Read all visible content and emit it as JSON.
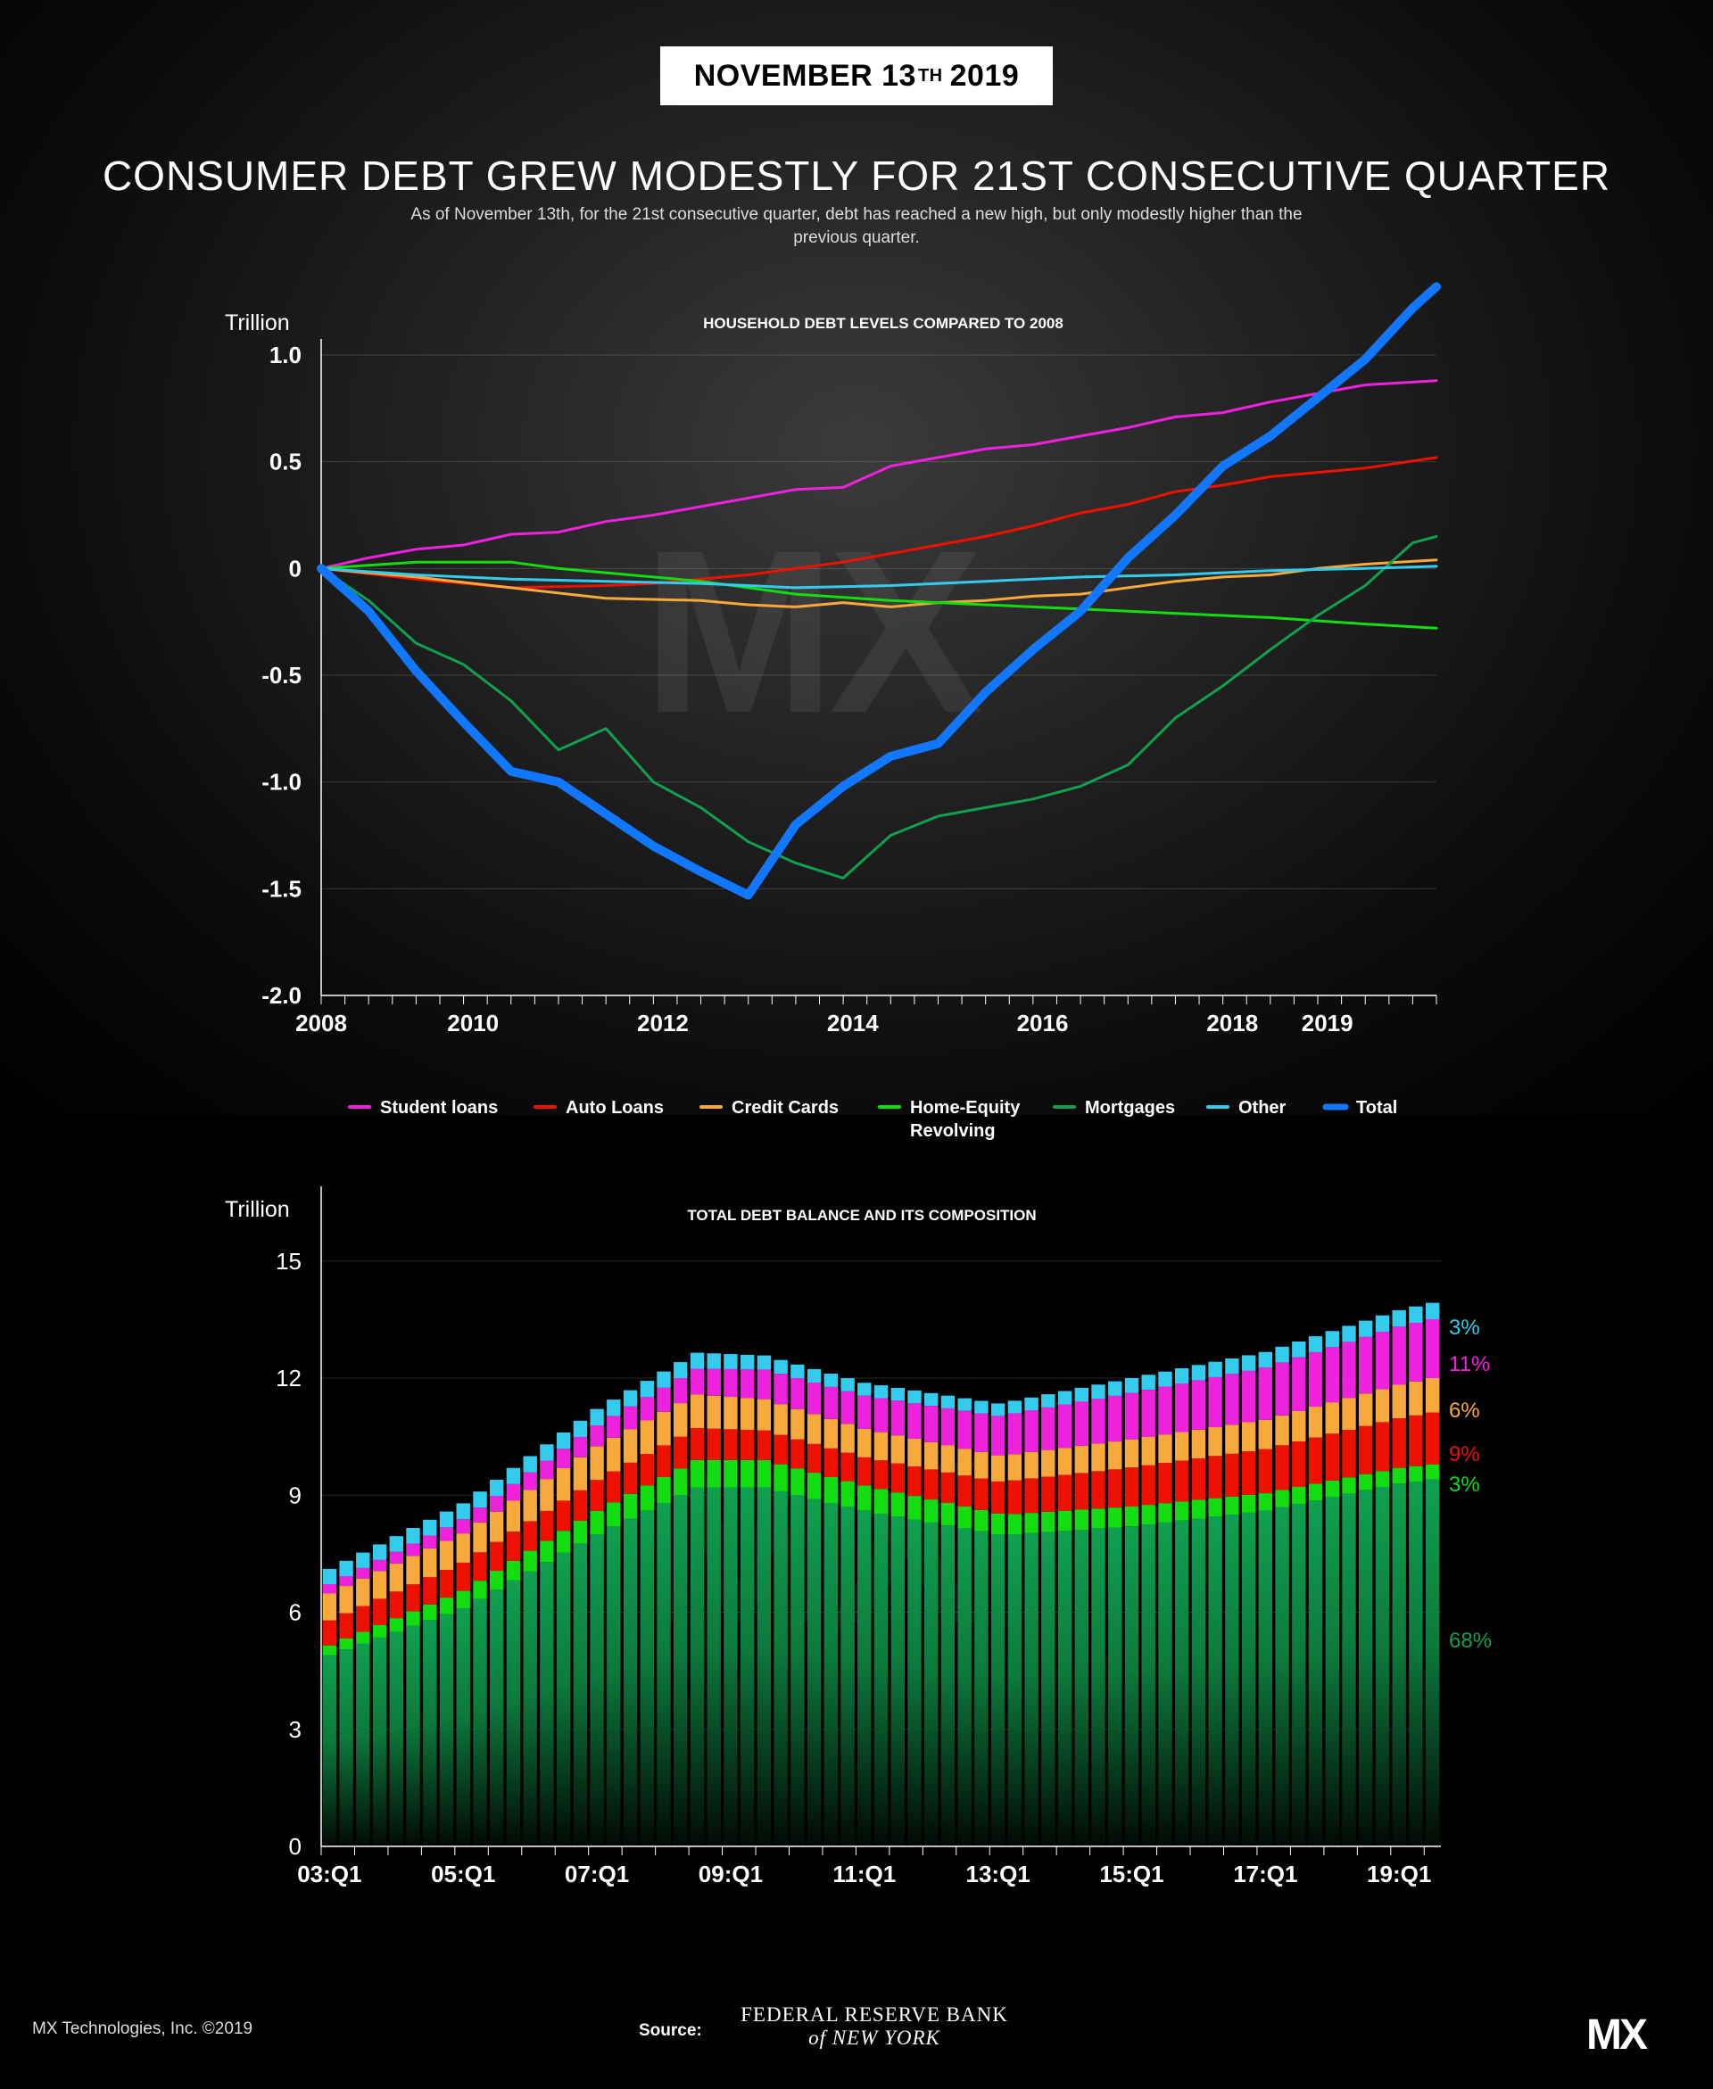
{
  "header": {
    "date_main": "NOVEMBER 13",
    "date_sup": "TH",
    "date_year": "2019",
    "title": "CONSUMER DEBT GREW MODESTLY FOR 21ST CONSECUTIVE QUARTER",
    "subtitle": "As of November 13th, for the 21st consecutive quarter, debt has reached a new high, but only modestly higher than the previous quarter."
  },
  "watermark": "MX",
  "footer": {
    "copyright": "MX Technologies, Inc. ©2019",
    "source_label": "Source:",
    "source_line1": "FEDERAL RESERVE BANK",
    "source_line2": "of NEW YORK",
    "logo": "MX"
  },
  "colors": {
    "student": "#ee22dd",
    "auto": "#ee1100",
    "credit": "#f7a93b",
    "heloc": "#11dd11",
    "mortgage": "#10a050",
    "other": "#33ccee",
    "total": "#1177ff"
  },
  "chart_data": [
    {
      "type": "line",
      "title": "HOUSEHOLD DEBT LEVELS COMPARED TO 2008",
      "ylabel": "Trillion",
      "ylim": [
        -2.0,
        1.0
      ],
      "yticks": [
        "1.0",
        "0.5",
        "0",
        "-0.5",
        "-1.0",
        "-1.5",
        "-2.0"
      ],
      "xlim": [
        2008,
        2019.75
      ],
      "xticks": [
        "2008",
        "2010",
        "2012",
        "2014",
        "2016",
        "2018",
        "2019"
      ],
      "xtick_values": [
        2008,
        2009.6,
        2011.6,
        2013.6,
        2015.6,
        2017.6,
        2018.6
      ],
      "grid": true,
      "legend_position": "bottom",
      "series": [
        {
          "name": "Student loans",
          "color": "#ee22dd",
          "x": [
            2008,
            2008.5,
            2009,
            2009.5,
            2010,
            2010.5,
            2011,
            2011.5,
            2012,
            2012.5,
            2013,
            2013.5,
            2014,
            2014.5,
            2015,
            2015.5,
            2016,
            2016.5,
            2017,
            2017.5,
            2018,
            2018.5,
            2019,
            2019.75
          ],
          "y": [
            0,
            0.05,
            0.09,
            0.11,
            0.16,
            0.17,
            0.22,
            0.25,
            0.29,
            0.33,
            0.37,
            0.38,
            0.48,
            0.52,
            0.56,
            0.58,
            0.62,
            0.66,
            0.71,
            0.73,
            0.78,
            0.82,
            0.86,
            0.88
          ]
        },
        {
          "name": "Auto Loans",
          "color": "#ee1100",
          "x": [
            2008,
            2009,
            2010,
            2011,
            2011.5,
            2012,
            2012.5,
            2013,
            2013.5,
            2014,
            2014.5,
            2015,
            2015.5,
            2016,
            2016.5,
            2017,
            2017.5,
            2018,
            2018.5,
            2019,
            2019.75
          ],
          "y": [
            0,
            -0.05,
            -0.09,
            -0.08,
            -0.07,
            -0.05,
            -0.03,
            0,
            0.03,
            0.07,
            0.11,
            0.15,
            0.2,
            0.26,
            0.3,
            0.36,
            0.39,
            0.43,
            0.45,
            0.47,
            0.52
          ]
        },
        {
          "name": "Credit Cards",
          "color": "#f7a93b",
          "x": [
            2008,
            2009,
            2010,
            2011,
            2012,
            2012.5,
            2013,
            2013.5,
            2014,
            2014.5,
            2015,
            2015.5,
            2016,
            2016.5,
            2017,
            2017.5,
            2018,
            2018.5,
            2019,
            2019.75
          ],
          "y": [
            0,
            -0.04,
            -0.09,
            -0.14,
            -0.15,
            -0.17,
            -0.18,
            -0.16,
            -0.18,
            -0.16,
            -0.15,
            -0.13,
            -0.12,
            -0.09,
            -0.06,
            -0.04,
            -0.03,
            0,
            0.02,
            0.04
          ]
        },
        {
          "name": "Home-Equity Revolving",
          "color": "#11dd11",
          "x": [
            2008,
            2009,
            2010,
            2010.5,
            2011,
            2011.5,
            2012,
            2013,
            2014,
            2015,
            2016,
            2017,
            2018,
            2019,
            2019.75
          ],
          "y": [
            0,
            0.03,
            0.03,
            0,
            -0.02,
            -0.04,
            -0.06,
            -0.12,
            -0.15,
            -0.17,
            -0.19,
            -0.21,
            -0.23,
            -0.26,
            -0.28
          ]
        },
        {
          "name": "Mortgages",
          "color": "#10a050",
          "x": [
            2008,
            2008.5,
            2009,
            2009.5,
            2010,
            2010.5,
            2011,
            2011.5,
            2012,
            2012.5,
            2013,
            2013.5,
            2014,
            2014.5,
            2015,
            2015.5,
            2016,
            2016.5,
            2017,
            2017.5,
            2018,
            2018.5,
            2019,
            2019.5,
            2019.75
          ],
          "y": [
            0,
            -0.15,
            -0.35,
            -0.45,
            -0.62,
            -0.85,
            -0.75,
            -1.0,
            -1.12,
            -1.28,
            -1.38,
            -1.45,
            -1.25,
            -1.16,
            -1.12,
            -1.08,
            -1.02,
            -0.92,
            -0.7,
            -0.55,
            -0.38,
            -0.22,
            -0.08,
            0.12,
            0.15
          ]
        },
        {
          "name": "Other",
          "color": "#33ccee",
          "x": [
            2008,
            2009,
            2010,
            2011,
            2012,
            2013,
            2014,
            2015,
            2016,
            2017,
            2018,
            2019,
            2019.75
          ],
          "y": [
            0,
            -0.03,
            -0.05,
            -0.06,
            -0.07,
            -0.09,
            -0.08,
            -0.06,
            -0.04,
            -0.03,
            -0.01,
            0,
            0.01
          ]
        },
        {
          "name": "Total",
          "color": "#1177ff",
          "x": [
            2008,
            2008.5,
            2009,
            2009.5,
            2010,
            2010.5,
            2011,
            2011.5,
            2012,
            2012.5,
            2013,
            2013.5,
            2014,
            2014.5,
            2015,
            2015.5,
            2016,
            2016.5,
            2017,
            2017.5,
            2018,
            2018.5,
            2019,
            2019.5,
            2019.75
          ],
          "y": [
            0,
            -0.2,
            -0.48,
            -0.72,
            -0.95,
            -1.0,
            -1.15,
            -1.3,
            -1.42,
            -1.53,
            -1.2,
            -1.02,
            -0.88,
            -0.82,
            -0.58,
            -0.38,
            -0.2,
            0.05,
            0.25,
            0.48,
            0.62,
            0.8,
            0.98,
            1.22,
            1.32
          ]
        }
      ]
    },
    {
      "type": "bar",
      "stacked": true,
      "title": "TOTAL DEBT BALANCE AND ITS COMPOSITION",
      "ylabel": "Trillion",
      "ylim": [
        0,
        16
      ],
      "yticks": [
        "0",
        "3",
        "6",
        "9",
        "12",
        "15"
      ],
      "xticks": [
        "03:Q1",
        "05:Q1",
        "07:Q1",
        "09:Q1",
        "11:Q1",
        "13:Q1",
        "15:Q1",
        "17:Q1",
        "19:Q1"
      ],
      "grid": true,
      "series_order": [
        "Mortgages",
        "Home-Equity Revolving",
        "Auto Loans",
        "Credit Cards",
        "Student loans",
        "Other"
      ],
      "keyframes": {
        "x": [
          "03:Q1",
          "05:Q1",
          "07:Q1",
          "08:Q3",
          "09:Q3",
          "11:Q1",
          "13:Q1",
          "13:Q2",
          "15:Q1",
          "17:Q1",
          "19:Q1",
          "19:Q3"
        ],
        "Mortgages": [
          4.9,
          6.1,
          8.0,
          9.2,
          9.2,
          8.6,
          8.0,
          8.0,
          8.2,
          8.6,
          9.3,
          9.4
        ],
        "Home-Equity Revolving": [
          0.25,
          0.45,
          0.6,
          0.7,
          0.7,
          0.65,
          0.53,
          0.52,
          0.51,
          0.45,
          0.4,
          0.39
        ],
        "Auto Loans": [
          0.64,
          0.72,
          0.79,
          0.82,
          0.76,
          0.72,
          0.82,
          0.86,
          1.0,
          1.13,
          1.27,
          1.33
        ],
        "Credit Cards": [
          0.69,
          0.75,
          0.86,
          0.86,
          0.8,
          0.73,
          0.67,
          0.67,
          0.72,
          0.75,
          0.86,
          0.88
        ],
        "Student loans": [
          0.24,
          0.36,
          0.54,
          0.66,
          0.76,
          0.85,
          1.01,
          1.05,
          1.19,
          1.34,
          1.49,
          1.51
        ],
        "Other": [
          0.39,
          0.41,
          0.42,
          0.41,
          0.36,
          0.33,
          0.32,
          0.32,
          0.38,
          0.4,
          0.42,
          0.42
        ]
      },
      "quarters": 67,
      "end_labels": [
        {
          "text": "3%",
          "color": "#33ccee"
        },
        {
          "text": "11%",
          "color": "#ee22dd"
        },
        {
          "text": "6%",
          "color": "#f7a93b"
        },
        {
          "text": "9%",
          "color": "#ee1100"
        },
        {
          "text": "3%",
          "color": "#11dd11"
        },
        {
          "text": "68%",
          "color": "#10a050"
        }
      ]
    }
  ]
}
